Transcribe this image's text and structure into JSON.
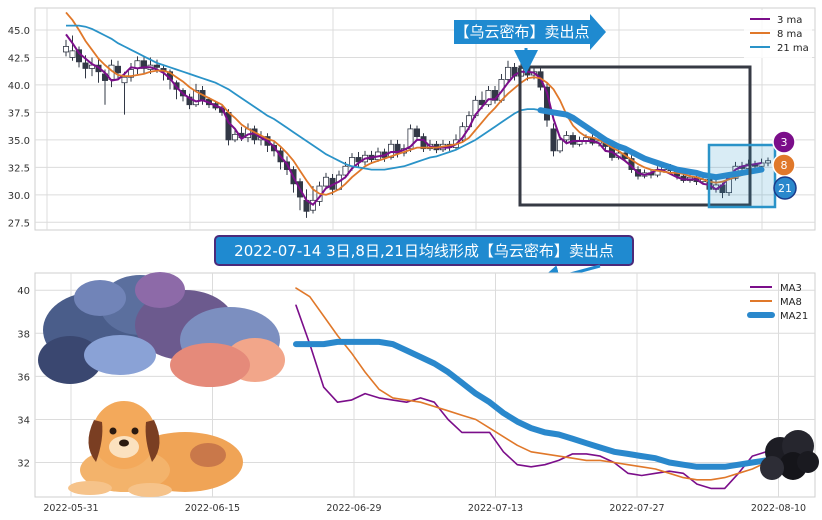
{
  "colors": {
    "ma3": "#7b0e8a",
    "ma8": "#e0782a",
    "ma21_top": "#2a93c8",
    "ma21_bottom": "#2a88cc",
    "candle_up_fill": "#ffffff",
    "candle_down_fill": "#323846",
    "candle_stroke": "#323846",
    "banner_bg": "#1f8ad0",
    "banner_border": "#4b2a7a",
    "annotation_box": "#363a44",
    "highlight_box": "#2a93c8",
    "grid": "#dcdcdc"
  },
  "top_panel": {
    "legend": [
      "3 ma",
      "8 ma",
      "21 ma"
    ],
    "yticks": [
      "27.5",
      "30.0",
      "32.5",
      "35.0",
      "37.5",
      "40.0",
      "42.5",
      "45.0"
    ],
    "callout": "【乌云密布】卖出点",
    "badges": [
      "3",
      "8",
      "21"
    ]
  },
  "banner": {
    "text": "2022-07-14 3日,8日,21日均线形成【乌云密布】卖出点"
  },
  "bottom_panel": {
    "legend": [
      "MA3",
      "MA8",
      "MA21"
    ],
    "yticks": [
      "32",
      "34",
      "36",
      "38",
      "40"
    ],
    "xticks": [
      "2022-05-31",
      "2022-06-15",
      "2022-06-29",
      "2022-07-13",
      "2022-07-27",
      "2022-08-10"
    ]
  },
  "illustrations": [
    "storm-cloud",
    "dog",
    "dark-cloud"
  ],
  "chart_data": [
    {
      "type": "candlestick",
      "ylim": [
        26.8,
        47.0
      ],
      "yscale": "linear",
      "grid": true,
      "legend_position": "top-right",
      "candles": [
        [
          43.0,
          43.5,
          42.6,
          44.1
        ],
        [
          42.5,
          43.1,
          42.2,
          44.5
        ],
        [
          43.2,
          42.1,
          41.6,
          43.5
        ],
        [
          42.0,
          41.5,
          40.6,
          42.7
        ],
        [
          41.5,
          41.8,
          40.8,
          42.5
        ],
        [
          41.8,
          41.2,
          40.2,
          42.3
        ],
        [
          41.0,
          40.4,
          38.2,
          41.4
        ],
        [
          40.5,
          41.8,
          39.8,
          42.3
        ],
        [
          41.7,
          41.1,
          40.5,
          42.2
        ],
        [
          40.2,
          40.7,
          37.3,
          41.2
        ],
        [
          40.7,
          41.4,
          40.3,
          42.0
        ],
        [
          41.5,
          42.2,
          41.0,
          42.6
        ],
        [
          42.2,
          41.5,
          41.0,
          42.6
        ],
        [
          41.4,
          41.8,
          41.0,
          42.5
        ],
        [
          41.8,
          41.6,
          41.1,
          42.3
        ],
        [
          41.5,
          41.2,
          40.4,
          41.8
        ],
        [
          41.2,
          40.5,
          39.6,
          41.4
        ],
        [
          40.2,
          39.6,
          38.7,
          40.4
        ],
        [
          39.5,
          39.0,
          38.5,
          39.7
        ],
        [
          38.9,
          38.2,
          37.8,
          39.2
        ],
        [
          38.2,
          39.5,
          38.0,
          40.1
        ],
        [
          39.5,
          38.6,
          38.2,
          39.9
        ],
        [
          38.7,
          38.2,
          37.9,
          38.9
        ],
        [
          38.3,
          37.9,
          37.7,
          38.5
        ],
        [
          37.9,
          37.5,
          37.2,
          38.2
        ],
        [
          37.5,
          35.0,
          34.5,
          37.8
        ],
        [
          35.0,
          35.5,
          34.8,
          36.0
        ],
        [
          35.6,
          35.2,
          34.9,
          36.2
        ],
        [
          35.2,
          36.0,
          34.8,
          36.5
        ],
        [
          36.0,
          35.0,
          34.6,
          36.3
        ],
        [
          35.0,
          35.2,
          34.5,
          35.8
        ],
        [
          35.3,
          34.5,
          33.9,
          35.6
        ],
        [
          34.5,
          34.0,
          33.5,
          34.8
        ],
        [
          34.0,
          33.0,
          32.3,
          34.3
        ],
        [
          33.0,
          32.3,
          31.8,
          33.5
        ],
        [
          32.3,
          31.0,
          30.2,
          32.6
        ],
        [
          31.2,
          29.8,
          28.6,
          31.5
        ],
        [
          29.5,
          28.5,
          27.9,
          30.5
        ],
        [
          28.6,
          29.5,
          28.3,
          30.8
        ],
        [
          29.4,
          30.8,
          29.0,
          31.2
        ],
        [
          30.8,
          31.6,
          30.5,
          32.0
        ],
        [
          31.5,
          30.5,
          30.0,
          31.9
        ],
        [
          30.5,
          31.8,
          30.4,
          32.2
        ],
        [
          31.8,
          32.6,
          31.5,
          33.0
        ],
        [
          32.6,
          33.4,
          32.2,
          33.8
        ],
        [
          33.4,
          33.0,
          32.5,
          33.9
        ],
        [
          33.0,
          33.6,
          32.7,
          34.0
        ],
        [
          33.6,
          33.2,
          32.8,
          34.0
        ],
        [
          33.2,
          33.9,
          33.0,
          34.3
        ],
        [
          33.9,
          33.4,
          33.0,
          34.2
        ],
        [
          33.4,
          34.6,
          33.2,
          35.0
        ],
        [
          34.6,
          33.8,
          33.4,
          35.0
        ],
        [
          33.8,
          34.2,
          33.5,
          34.6
        ],
        [
          34.2,
          36.0,
          33.9,
          36.4
        ],
        [
          36.0,
          35.3,
          34.9,
          36.3
        ],
        [
          35.3,
          34.2,
          33.9,
          35.6
        ],
        [
          34.2,
          34.6,
          34.0,
          35.0
        ],
        [
          34.6,
          34.1,
          33.8,
          34.9
        ],
        [
          34.1,
          34.6,
          33.9,
          35.0
        ],
        [
          34.6,
          34.3,
          34.0,
          34.9
        ],
        [
          34.3,
          35.0,
          34.1,
          35.5
        ],
        [
          35.0,
          36.2,
          34.8,
          36.6
        ],
        [
          36.2,
          37.2,
          35.9,
          37.6
        ],
        [
          37.2,
          38.6,
          37.0,
          39.0
        ],
        [
          38.6,
          38.2,
          37.8,
          39.4
        ],
        [
          38.2,
          39.5,
          38.0,
          39.9
        ],
        [
          39.5,
          38.6,
          38.3,
          39.9
        ],
        [
          38.6,
          40.5,
          38.4,
          41.0
        ],
        [
          40.5,
          41.6,
          40.2,
          42.2
        ],
        [
          41.6,
          40.8,
          40.4,
          42.0
        ],
        [
          40.8,
          41.5,
          40.5,
          42.0
        ],
        [
          41.5,
          40.9,
          40.4,
          41.9
        ],
        [
          40.9,
          41.2,
          40.5,
          41.6
        ],
        [
          41.2,
          39.8,
          39.5,
          41.5
        ],
        [
          39.8,
          36.8,
          36.2,
          40.2
        ],
        [
          36.0,
          34.0,
          33.5,
          36.5
        ],
        [
          34.0,
          35.0,
          33.8,
          35.4
        ],
        [
          35.0,
          35.4,
          34.6,
          35.8
        ],
        [
          35.4,
          34.6,
          34.3,
          35.7
        ],
        [
          34.6,
          34.9,
          34.4,
          35.3
        ],
        [
          34.9,
          35.2,
          34.6,
          35.5
        ],
        [
          35.2,
          34.7,
          34.5,
          35.6
        ],
        [
          34.7,
          34.9,
          34.4,
          35.2
        ],
        [
          34.9,
          34.4,
          34.1,
          35.1
        ],
        [
          34.4,
          33.4,
          33.1,
          34.7
        ],
        [
          33.4,
          33.8,
          33.2,
          34.3
        ],
        [
          33.8,
          33.3,
          33.0,
          34.1
        ],
        [
          33.3,
          32.3,
          32.0,
          33.6
        ],
        [
          32.3,
          31.7,
          31.4,
          32.6
        ],
        [
          31.7,
          32.0,
          31.5,
          32.3
        ],
        [
          32.0,
          31.8,
          31.5,
          32.3
        ],
        [
          31.8,
          32.3,
          31.6,
          32.6
        ],
        [
          32.3,
          32.5,
          32.0,
          32.8
        ],
        [
          32.5,
          32.2,
          31.9,
          32.8
        ],
        [
          32.2,
          31.7,
          31.4,
          32.4
        ],
        [
          31.7,
          31.3,
          31.1,
          31.9
        ],
        [
          31.3,
          31.6,
          31.1,
          31.9
        ],
        [
          31.6,
          31.2,
          30.9,
          31.8
        ],
        [
          31.2,
          31.4,
          31.0,
          31.7
        ],
        [
          31.4,
          30.5,
          29.9,
          31.6
        ],
        [
          30.5,
          30.9,
          30.2,
          31.4
        ],
        [
          30.9,
          30.2,
          29.7,
          31.1
        ],
        [
          30.2,
          31.5,
          29.9,
          31.9
        ],
        [
          31.5,
          32.6,
          31.3,
          33.0
        ],
        [
          32.6,
          32.4,
          32.0,
          33.0
        ],
        [
          32.4,
          32.8,
          32.1,
          33.2
        ],
        [
          32.8,
          32.6,
          32.3,
          33.1
        ],
        [
          32.6,
          32.9,
          32.4,
          33.3
        ],
        [
          32.9,
          33.1,
          32.6,
          33.4
        ]
      ],
      "candle_order": "open, close, low, high",
      "series": [
        {
          "name": "3 ma",
          "values": [
            44.6,
            43.8,
            42.9,
            42.4,
            41.9,
            41.6,
            41.1,
            40.4,
            40.5,
            41.0,
            41.6,
            41.5,
            41.6,
            41.6,
            41.4,
            41.1,
            40.6,
            39.8,
            39.2,
            38.8,
            38.5,
            38.6,
            38.4,
            38.1,
            37.9,
            36.6,
            36.0,
            35.1,
            35.5,
            35.6,
            35.2,
            34.9,
            34.4,
            33.5,
            32.8,
            31.6,
            30.5,
            29.5,
            29.1,
            29.8,
            30.6,
            30.9,
            31.2,
            31.6,
            32.4,
            32.9,
            33.3,
            33.4,
            33.5,
            33.6,
            33.9,
            33.9,
            34.1,
            34.4,
            35.0,
            35.0,
            34.4,
            34.3,
            34.3,
            34.3,
            34.6,
            35.2,
            36.1,
            37.3,
            38.0,
            38.7,
            38.7,
            39.4,
            40.2,
            40.9,
            41.2,
            41.2,
            41.1,
            40.6,
            39.3,
            36.9,
            35.2,
            34.7,
            34.9,
            34.9,
            34.9,
            34.9,
            34.7,
            34.0,
            33.9,
            33.5,
            33.1,
            32.6,
            32.0,
            31.8,
            32.0,
            32.3,
            32.2,
            31.9,
            31.6,
            31.4,
            31.4,
            31.4,
            31.0,
            30.9,
            30.5,
            30.9,
            31.6,
            32.3,
            32.6,
            32.7,
            32.8,
            32.9
          ]
        },
        {
          "name": "8 ma",
          "values": [
            46.6,
            45.9,
            45.0,
            44.0,
            43.2,
            42.4,
            41.8,
            41.3,
            40.9,
            40.8,
            40.8,
            40.9,
            41.0,
            41.2,
            41.3,
            41.3,
            41.1,
            40.7,
            40.3,
            39.8,
            39.4,
            39.1,
            38.8,
            38.5,
            38.2,
            37.5,
            37.0,
            36.4,
            36.0,
            35.7,
            35.4,
            35.1,
            34.9,
            34.4,
            33.8,
            33.1,
            32.2,
            31.3,
            30.5,
            30.1,
            30.0,
            30.2,
            30.5,
            31.0,
            31.6,
            32.1,
            32.6,
            32.9,
            33.1,
            33.3,
            33.5,
            33.7,
            33.9,
            34.1,
            34.3,
            34.3,
            34.3,
            34.3,
            34.4,
            34.5,
            34.6,
            34.8,
            35.2,
            35.9,
            36.6,
            37.3,
            37.9,
            38.6,
            39.2,
            39.7,
            40.2,
            40.6,
            40.7,
            40.6,
            40.2,
            39.6,
            38.6,
            37.3,
            36.3,
            35.7,
            35.3,
            35.2,
            35.0,
            34.7,
            34.3,
            34.0,
            33.6,
            33.2,
            32.8,
            32.5,
            32.3,
            32.2,
            32.1,
            32.0,
            32.0,
            31.9,
            31.7,
            31.6,
            31.4,
            31.2,
            31.1,
            31.2,
            31.4,
            31.6,
            31.8,
            32.0,
            32.2,
            32.4
          ]
        },
        {
          "name": "21 ma",
          "values": [
            45.4,
            45.4,
            45.4,
            45.3,
            45.1,
            44.8,
            44.5,
            44.2,
            43.8,
            43.5,
            43.2,
            42.9,
            42.6,
            42.3,
            42.0,
            41.8,
            41.6,
            41.4,
            41.2,
            41.0,
            40.8,
            40.6,
            40.4,
            40.2,
            39.9,
            39.6,
            39.2,
            38.8,
            38.4,
            38.0,
            37.6,
            37.2,
            36.9,
            36.5,
            36.1,
            35.7,
            35.3,
            34.9,
            34.5,
            34.1,
            33.7,
            33.4,
            33.1,
            32.8,
            32.6,
            32.5,
            32.4,
            32.3,
            32.3,
            32.3,
            32.4,
            32.5,
            32.6,
            32.8,
            33.0,
            33.2,
            33.4,
            33.5,
            33.7,
            33.9,
            34.1,
            34.4,
            34.7,
            35.0,
            35.4,
            35.8,
            36.2,
            36.6,
            37.0,
            37.4,
            37.7,
            37.8,
            37.8,
            37.7,
            37.6,
            37.5,
            37.4,
            37.3,
            37.0,
            36.6,
            36.2,
            35.8,
            35.4,
            35.0,
            34.7,
            34.4,
            34.2,
            33.9,
            33.6,
            33.3,
            33.1,
            32.9,
            32.7,
            32.5,
            32.3,
            32.2,
            32.1,
            32.0,
            31.8,
            31.7,
            31.6,
            31.7,
            31.8,
            31.9,
            32.0,
            32.1,
            32.2,
            32.3
          ]
        }
      ]
    },
    {
      "type": "line",
      "ylim": [
        30.4,
        40.8
      ],
      "yscale": "linear",
      "grid": true,
      "legend_position": "top-right",
      "xticks": [
        "2022-05-31",
        "2022-06-15",
        "2022-06-29",
        "2022-07-13",
        "2022-07-27",
        "2022-08-10"
      ],
      "yticks": [
        32,
        34,
        36,
        38,
        40
      ],
      "start_date": "2022-06-24",
      "end_date": "2022-08-10",
      "series": [
        {
          "name": "MA3",
          "values": [
            39.3,
            37.5,
            35.5,
            34.8,
            34.9,
            35.2,
            35.0,
            34.9,
            34.8,
            35.0,
            34.8,
            34.0,
            33.4,
            33.4,
            33.4,
            32.5,
            31.9,
            31.8,
            31.9,
            32.1,
            32.4,
            32.4,
            32.3,
            32.0,
            31.5,
            31.4,
            31.5,
            31.6,
            31.5,
            31.0,
            30.8,
            30.8,
            31.5,
            32.3,
            32.5,
            32.6
          ]
        },
        {
          "name": "MA8",
          "values": [
            40.1,
            39.7,
            38.8,
            37.9,
            37.1,
            36.2,
            35.4,
            35.0,
            34.9,
            34.8,
            34.6,
            34.4,
            34.2,
            34.0,
            33.6,
            33.2,
            32.8,
            32.5,
            32.4,
            32.3,
            32.2,
            32.1,
            32.1,
            32.0,
            31.9,
            31.8,
            31.7,
            31.5,
            31.3,
            31.2,
            31.2,
            31.3,
            31.5,
            31.7,
            32.0,
            32.2
          ]
        },
        {
          "name": "MA21",
          "values": [
            37.5,
            37.5,
            37.5,
            37.6,
            37.6,
            37.6,
            37.6,
            37.5,
            37.2,
            36.9,
            36.6,
            36.2,
            35.7,
            35.2,
            34.8,
            34.3,
            33.9,
            33.6,
            33.4,
            33.3,
            33.1,
            32.9,
            32.7,
            32.5,
            32.4,
            32.3,
            32.2,
            32.0,
            31.9,
            31.8,
            31.8,
            31.8,
            31.9,
            32.0,
            32.1,
            32.2
          ]
        }
      ]
    }
  ]
}
